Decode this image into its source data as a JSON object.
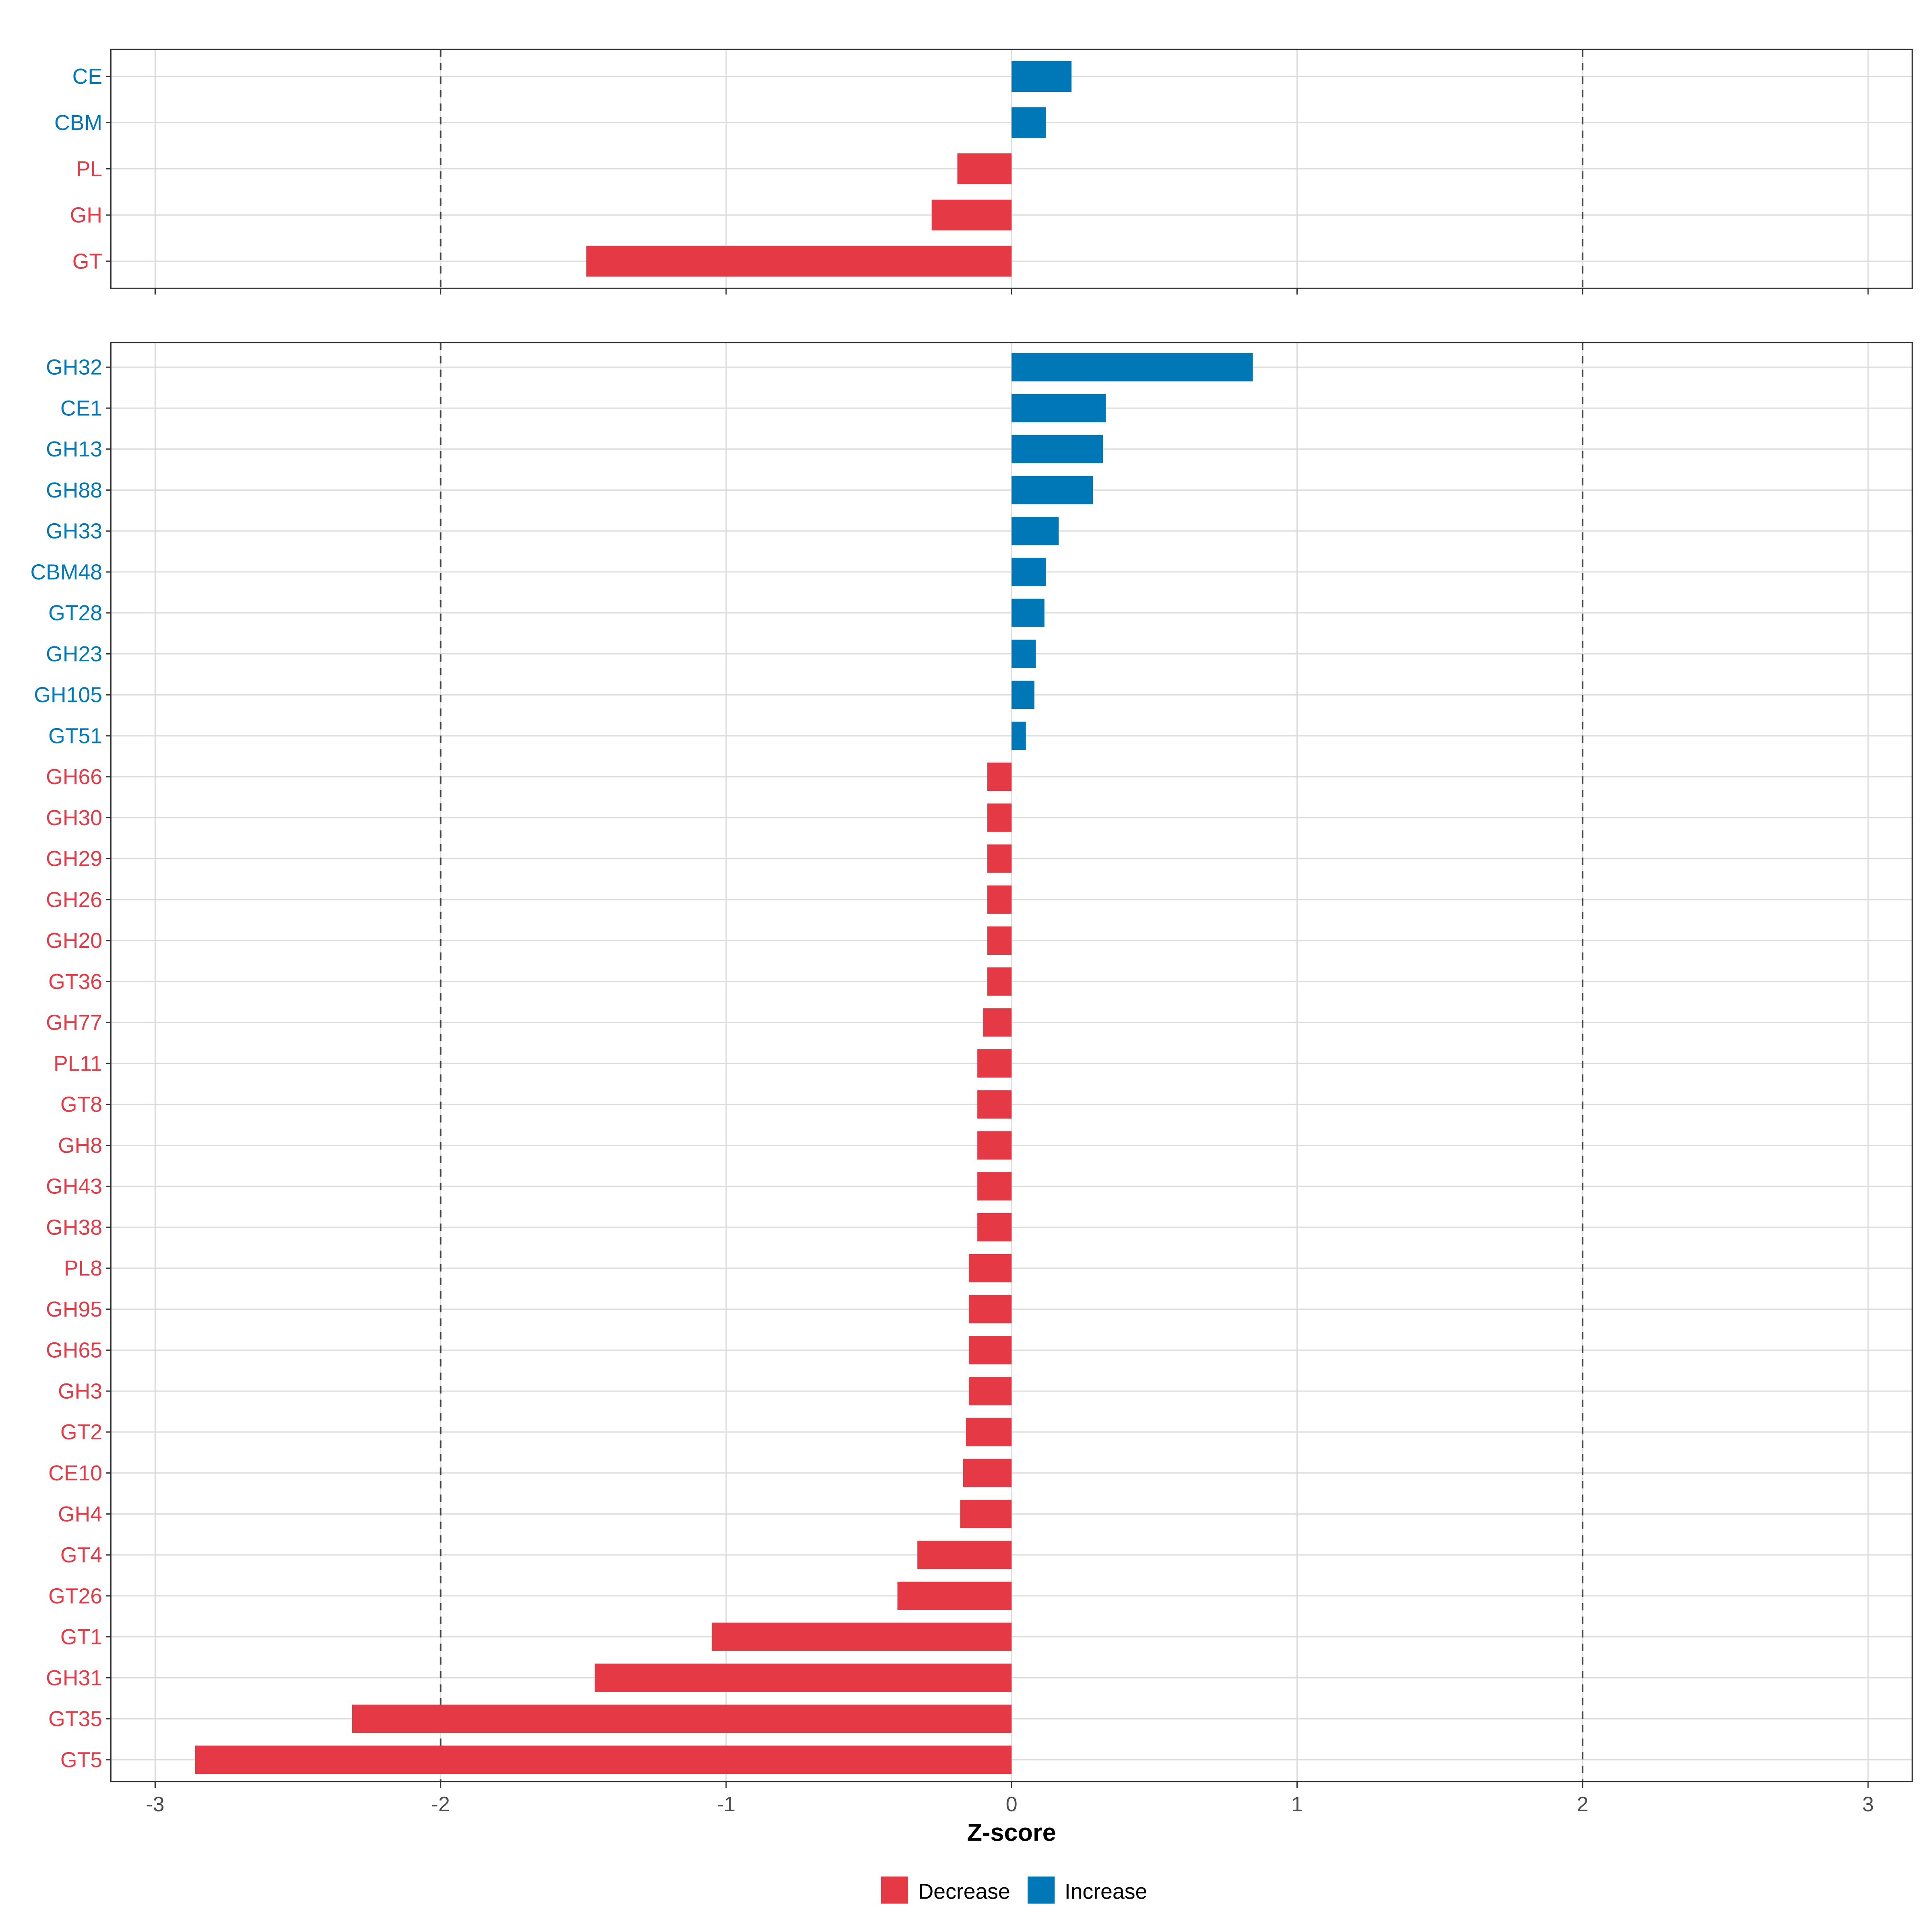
{
  "chart_data": [
    {
      "type": "bar",
      "orientation": "horizontal",
      "panel": "top",
      "categories": [
        "CE",
        "CBM",
        "PL",
        "GH",
        "GT"
      ],
      "values": [
        0.21,
        0.12,
        -0.19,
        -0.28,
        -1.49
      ],
      "xlim": [
        -3.15,
        3.15
      ],
      "reference_lines": [
        -2,
        2
      ],
      "grid": true
    },
    {
      "type": "bar",
      "orientation": "horizontal",
      "panel": "bottom",
      "categories": [
        "GH32",
        "CE1",
        "GH13",
        "GH88",
        "GH33",
        "CBM48",
        "GT28",
        "GH23",
        "GH105",
        "GT51",
        "GH66",
        "GH30",
        "GH29",
        "GH26",
        "GH20",
        "GT36",
        "GH77",
        "PL11",
        "GT8",
        "GH8",
        "GH43",
        "GH38",
        "PL8",
        "GH95",
        "GH65",
        "GH3",
        "GT2",
        "CE10",
        "GH4",
        "GT4",
        "GT26",
        "GT1",
        "GH31",
        "GT35",
        "GT5"
      ],
      "values": [
        0.845,
        0.33,
        0.32,
        0.285,
        0.165,
        0.12,
        0.115,
        0.085,
        0.08,
        0.05,
        -0.085,
        -0.085,
        -0.085,
        -0.085,
        -0.085,
        -0.085,
        -0.1,
        -0.12,
        -0.12,
        -0.12,
        -0.12,
        -0.12,
        -0.15,
        -0.15,
        -0.15,
        -0.15,
        -0.16,
        -0.17,
        -0.18,
        -0.33,
        -0.4,
        -1.05,
        -1.46,
        -2.31,
        -2.86
      ],
      "xlim": [
        -3.15,
        3.15
      ],
      "xticks": [
        -3,
        -2,
        -1,
        0,
        1,
        2,
        3
      ],
      "xtick_labels": [
        "-3",
        "-2",
        "-1",
        "0",
        "1",
        "2",
        "3"
      ],
      "xlabel": "Z-score",
      "reference_lines": [
        -2,
        2
      ],
      "grid": true
    }
  ],
  "legend": {
    "placement": "bottom",
    "items": [
      {
        "label": "Decrease",
        "color": "#E63946"
      },
      {
        "label": "Increase",
        "color": "#0077B6"
      }
    ]
  }
}
